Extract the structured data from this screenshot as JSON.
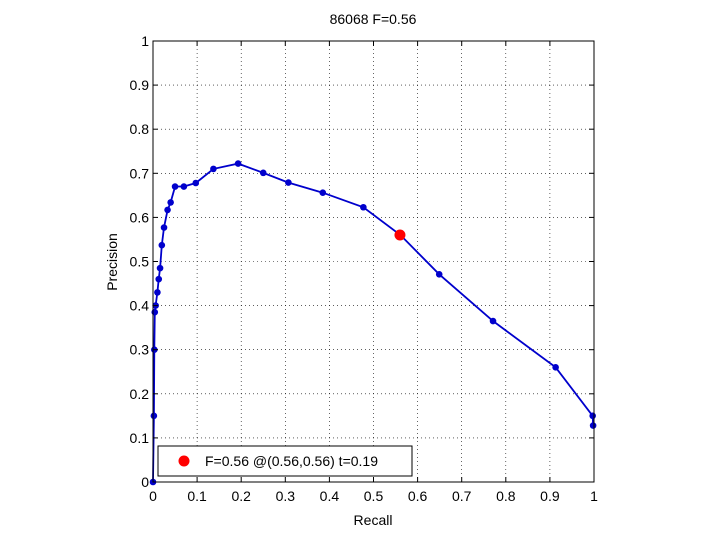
{
  "chart_data": {
    "type": "line",
    "title": "86068 F=0.56",
    "xlabel": "Recall",
    "ylabel": "Precision",
    "xlim": [
      0,
      1
    ],
    "ylim": [
      0,
      1
    ],
    "grid": true,
    "x_ticks": [
      0,
      0.1,
      0.2,
      0.3,
      0.4,
      0.5,
      0.6,
      0.7,
      0.8,
      0.9,
      1
    ],
    "y_ticks": [
      0,
      0.1,
      0.2,
      0.3,
      0.4,
      0.5,
      0.6,
      0.7,
      0.8,
      0.9,
      1
    ],
    "tick_labels_x": [
      "0",
      "0.1",
      "0.2",
      "0.3",
      "0.4",
      "0.5",
      "0.6",
      "0.7",
      "0.8",
      "0.9",
      "1"
    ],
    "tick_labels_y": [
      "0",
      "0.1",
      "0.2",
      "0.3",
      "0.4",
      "0.5",
      "0.6",
      "0.7",
      "0.8",
      "0.9",
      "1"
    ],
    "series": [
      {
        "color": "#0000cc",
        "x": [
          0,
          0.002,
          0.003,
          0.004,
          0.006,
          0.01,
          0.013,
          0.016,
          0.02,
          0.025,
          0.033,
          0.04,
          0.05,
          0.07,
          0.097,
          0.137,
          0.193,
          0.25,
          0.307,
          0.385,
          0.477,
          0.561,
          0.649,
          0.771,
          0.913,
          0.997,
          0.998
        ],
        "y": [
          0,
          0.15,
          0.3,
          0.385,
          0.4,
          0.43,
          0.46,
          0.485,
          0.537,
          0.577,
          0.617,
          0.634,
          0.67,
          0.67,
          0.678,
          0.71,
          0.722,
          0.701,
          0.679,
          0.656,
          0.623,
          0.56,
          0.471,
          0.365,
          0.26,
          0.15,
          0.128
        ]
      }
    ],
    "highlight": {
      "x": 0.56,
      "y": 0.56,
      "color": "#ff0000"
    },
    "legend": {
      "placement": "bottom-left",
      "label": "F=0.56 @(0.56,0.56) t=0.19"
    }
  }
}
